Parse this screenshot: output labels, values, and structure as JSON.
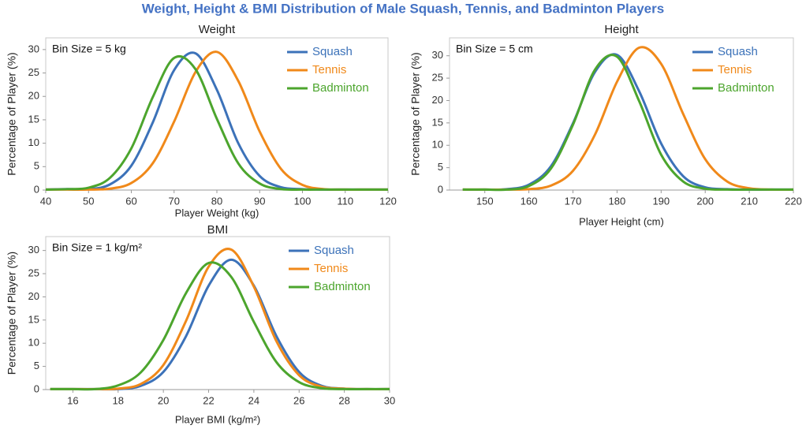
{
  "title": "Weight, Height & BMI Distribution of Male Squash, Tennis, and Badminton Players",
  "chart_data": [
    {
      "type": "line",
      "title": "Weight",
      "annotation": "Bin Size = 5 kg",
      "x_label": "Player Weight (kg)",
      "y_label": "Percentage of Player (%)",
      "x": [
        40,
        45,
        50,
        55,
        60,
        65,
        70,
        75,
        80,
        85,
        90,
        95,
        100,
        105,
        110,
        115,
        120
      ],
      "series": [
        {
          "name": "Squash",
          "color": "#3c72b9",
          "values": [
            0.1,
            0.2,
            0.2,
            1.2,
            5.2,
            14.4,
            25.6,
            29.2,
            21.4,
            10.0,
            3.0,
            0.6,
            0.2,
            0.1,
            0.1,
            0.1,
            0.1
          ]
        },
        {
          "name": "Tennis",
          "color": "#f0891a",
          "values": [
            0.1,
            0.1,
            0.1,
            0.3,
            1.5,
            5.7,
            14.6,
            25.2,
            29.5,
            23.3,
            12.5,
            4.5,
            1.1,
            0.2,
            0.1,
            0.1,
            0.1
          ]
        },
        {
          "name": "Badminton",
          "color": "#4ca52d",
          "values": [
            0.1,
            0.2,
            0.5,
            2.6,
            8.9,
            19.8,
            28.2,
            25.8,
            15.2,
            5.7,
            1.4,
            0.2,
            0.1,
            0.1,
            0.1,
            0.1,
            0.1
          ]
        }
      ],
      "xlim": [
        40,
        120
      ],
      "xticks": [
        40,
        50,
        60,
        70,
        80,
        90,
        100,
        110,
        120
      ],
      "ylim": [
        0,
        32.5
      ],
      "yticks": [
        0,
        5,
        10,
        15,
        20,
        25,
        30
      ],
      "grid": false,
      "legend": "upper right"
    },
    {
      "type": "line",
      "title": "Height",
      "annotation": "Bin Size = 5 cm",
      "x_label": "Player Height (cm)",
      "y_label": "Percentage of Player (%)",
      "x": [
        145,
        150,
        155,
        160,
        165,
        170,
        175,
        180,
        185,
        190,
        195,
        200,
        205,
        210,
        215,
        220
      ],
      "series": [
        {
          "name": "Squash",
          "color": "#3c72b9",
          "values": [
            0.1,
            0.1,
            0.2,
            1.2,
            5.3,
            14.9,
            26.4,
            30.2,
            22.1,
            10.4,
            3.1,
            0.6,
            0.2,
            0.1,
            0.1,
            0.1
          ]
        },
        {
          "name": "Tennis",
          "color": "#f0891a",
          "values": [
            0.1,
            0.1,
            0.1,
            0.2,
            1.0,
            4.3,
            12.4,
            24.2,
            31.8,
            28.2,
            17.0,
            6.9,
            1.9,
            0.4,
            0.1,
            0.1
          ]
        },
        {
          "name": "Badminton",
          "color": "#4ca52d",
          "values": [
            0.1,
            0.1,
            0.1,
            0.9,
            4.8,
            14.6,
            26.9,
            29.8,
            19.9,
            7.9,
            1.9,
            0.3,
            0.1,
            0.1,
            0.1,
            0.1
          ]
        }
      ],
      "xlim": [
        142,
        220
      ],
      "xticks": [
        150,
        160,
        170,
        180,
        190,
        200,
        210,
        220
      ],
      "ylim": [
        0,
        34
      ],
      "yticks": [
        0,
        5,
        10,
        15,
        20,
        25,
        30
      ],
      "grid": false,
      "legend": "upper right"
    },
    {
      "type": "line",
      "title": "BMI",
      "annotation": "Bin Size = 1 kg/m²",
      "x_label": "Player BMI (kg/m²)",
      "y_label": "Percentage of Player (%)",
      "x": [
        15,
        16,
        17,
        18,
        19,
        20,
        21,
        22,
        23,
        24,
        25,
        26,
        27,
        28,
        29,
        30
      ],
      "series": [
        {
          "name": "Squash",
          "color": "#3c72b9",
          "values": [
            0.1,
            0.1,
            0.1,
            0.1,
            0.8,
            3.8,
            11.5,
            22.4,
            28.0,
            22.4,
            11.5,
            3.8,
            0.8,
            0.2,
            0.1,
            0.1
          ]
        },
        {
          "name": "Tennis",
          "color": "#f0891a",
          "values": [
            0.1,
            0.1,
            0.1,
            0.2,
            1.2,
            5.3,
            14.8,
            26.5,
            30.2,
            22.2,
            10.4,
            3.1,
            0.6,
            0.2,
            0.1,
            0.1
          ]
        },
        {
          "name": "Badminton",
          "color": "#4ca52d",
          "values": [
            0.1,
            0.1,
            0.1,
            0.9,
            3.7,
            10.7,
            20.8,
            27.3,
            24.3,
            14.6,
            5.9,
            1.6,
            0.3,
            0.1,
            0.1,
            0.1
          ]
        }
      ],
      "xlim": [
        14.8,
        30
      ],
      "xticks": [
        16,
        18,
        20,
        22,
        24,
        26,
        28,
        30
      ],
      "ylim": [
        0,
        33
      ],
      "yticks": [
        0,
        5,
        10,
        15,
        20,
        25,
        30
      ],
      "grid": false,
      "legend": "upper right"
    }
  ]
}
